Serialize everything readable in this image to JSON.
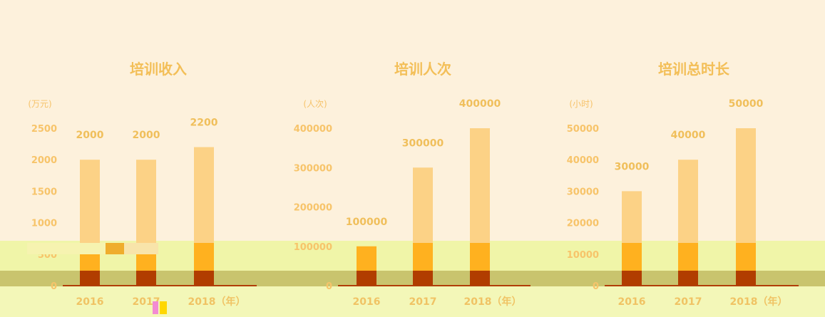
{
  "chart_data": [
    {
      "type": "bar",
      "title": "培训收入",
      "unit": "(万元)",
      "categories": [
        "2016",
        "2017",
        "2018（年）"
      ],
      "values": [
        2000,
        2000,
        2200
      ],
      "data_labels": [
        "2000",
        "2000",
        "2200"
      ],
      "ylim": [
        0,
        2500
      ],
      "yticks": [
        "0",
        "500",
        "1000",
        "1500",
        "2000",
        "2500"
      ]
    },
    {
      "type": "bar",
      "title": "培训人次",
      "unit": "(人次)",
      "categories": [
        "2016",
        "2017",
        "2018（年）"
      ],
      "values": [
        100000,
        300000,
        400000
      ],
      "data_labels": [
        "100000",
        "300000",
        "400000"
      ],
      "ylim": [
        0,
        400000
      ],
      "yticks": [
        "0",
        "100000",
        "200000",
        "300000",
        "400000"
      ]
    },
    {
      "type": "bar",
      "title": "培训总时长",
      "unit": "(小时)",
      "categories": [
        "2016",
        "2017",
        "2018（年）"
      ],
      "values": [
        30000,
        40000,
        50000
      ],
      "data_labels": [
        "30000",
        "40000",
        "50000"
      ],
      "ylim": [
        0,
        50000
      ],
      "yticks": [
        "0",
        "10000",
        "20000",
        "30000",
        "40000",
        "50000"
      ]
    }
  ],
  "colors": {
    "background": "#fdf1dc",
    "bar_top": "#fcd286",
    "bar_mid": "#ffb11f",
    "bar_low": "#b13d00",
    "title": "#f3bf58"
  }
}
